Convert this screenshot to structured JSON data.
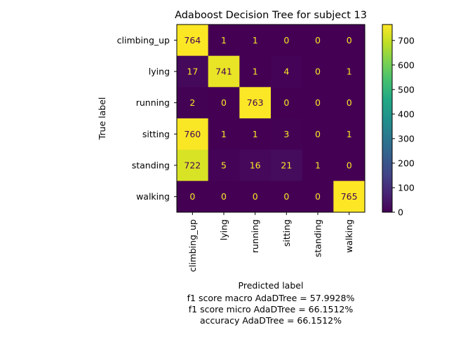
{
  "chart_data": {
    "type": "heatmap",
    "title": "Adaboost Decision Tree for subject 13",
    "xlabel": "Predicted label",
    "ylabel": "True label",
    "row_labels": [
      "climbing_up",
      "lying",
      "running",
      "sitting",
      "standing",
      "walking"
    ],
    "col_labels": [
      "climbing_up",
      "lying",
      "running",
      "sitting",
      "standing",
      "walking"
    ],
    "matrix": [
      [
        764,
        1,
        1,
        0,
        0,
        0
      ],
      [
        17,
        741,
        1,
        4,
        0,
        1
      ],
      [
        2,
        0,
        763,
        0,
        0,
        0
      ],
      [
        760,
        1,
        1,
        3,
        0,
        1
      ],
      [
        722,
        5,
        16,
        21,
        1,
        0
      ],
      [
        0,
        0,
        0,
        0,
        0,
        765
      ]
    ],
    "colormap": "viridis",
    "colorbar": {
      "min": 0,
      "max": 765,
      "ticks": [
        0,
        100,
        200,
        300,
        400,
        500,
        600,
        700
      ]
    }
  },
  "metrics": {
    "line1": "f1 score macro AdaDTree = 57.9928%",
    "line2": "f1 score micro AdaDTree = 66.1512%",
    "line3": "accuracy AdaDTree = 66.1512%"
  }
}
